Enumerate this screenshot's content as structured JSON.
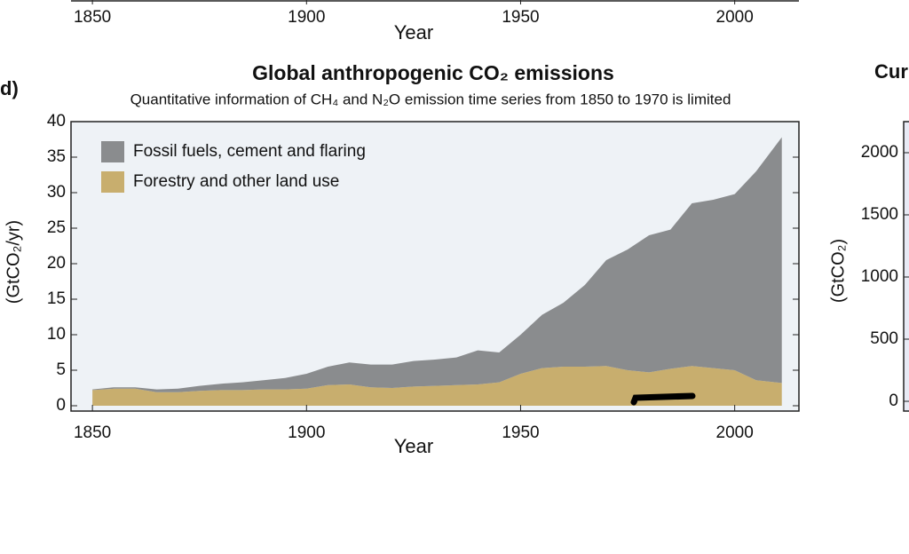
{
  "chart_data": [
    {
      "type": "axis-fragment",
      "xlabel": "Year",
      "xlim": [
        1845,
        2015
      ],
      "xticks": [
        1850,
        1900,
        1950,
        2000
      ]
    },
    {
      "type": "stacked-area",
      "panel_label": "d)",
      "title": "Global anthropogenic CO₂ emissions",
      "subtitle": "Quantitative information of CH₄ and N₂O emission time series from 1850 to 1970 is limited",
      "xlabel": "Year",
      "ylabel": "(GtCO₂/yr)",
      "x": [
        1850,
        1855,
        1860,
        1865,
        1870,
        1875,
        1880,
        1885,
        1890,
        1895,
        1900,
        1905,
        1910,
        1915,
        1920,
        1925,
        1930,
        1935,
        1940,
        1945,
        1950,
        1955,
        1960,
        1965,
        1970,
        1975,
        1980,
        1985,
        1990,
        1995,
        2000,
        2005,
        2011
      ],
      "series": [
        {
          "name": "Forestry and other land use",
          "color": "#c8ae6e",
          "values": [
            2.2,
            2.4,
            2.4,
            1.9,
            1.9,
            2.1,
            2.2,
            2.2,
            2.3,
            2.3,
            2.4,
            2.9,
            3.0,
            2.6,
            2.5,
            2.7,
            2.8,
            2.9,
            3.0,
            3.3,
            4.5,
            5.3,
            5.5,
            5.5,
            5.6,
            5.0,
            4.7,
            5.2,
            5.6,
            5.3,
            5.0,
            3.6,
            3.2
          ]
        },
        {
          "name": "Fossil fuels, cement and flaring",
          "color": "#8a8c8e",
          "values": [
            0.1,
            0.2,
            0.2,
            0.4,
            0.5,
            0.7,
            0.9,
            1.1,
            1.3,
            1.6,
            2.1,
            2.6,
            3.1,
            3.2,
            3.3,
            3.6,
            3.7,
            3.9,
            4.8,
            4.2,
            5.5,
            7.5,
            9.0,
            11.5,
            14.9,
            17.0,
            19.3,
            19.6,
            22.9,
            23.7,
            24.8,
            29.4,
            34.6
          ]
        }
      ],
      "xlim": [
        1845,
        2015
      ],
      "xticks": [
        1850,
        1900,
        1950,
        2000
      ],
      "ylim": [
        0,
        40
      ],
      "yticks": [
        0,
        5,
        10,
        15,
        20,
        25,
        30,
        35,
        40
      ],
      "legend": "upper left"
    },
    {
      "type": "axis-fragment",
      "title": "Cur",
      "ylabel": "(GtCO₂)",
      "ylim": [
        0,
        2250
      ],
      "yticks": [
        0,
        500,
        1000,
        1500,
        2000
      ]
    }
  ]
}
